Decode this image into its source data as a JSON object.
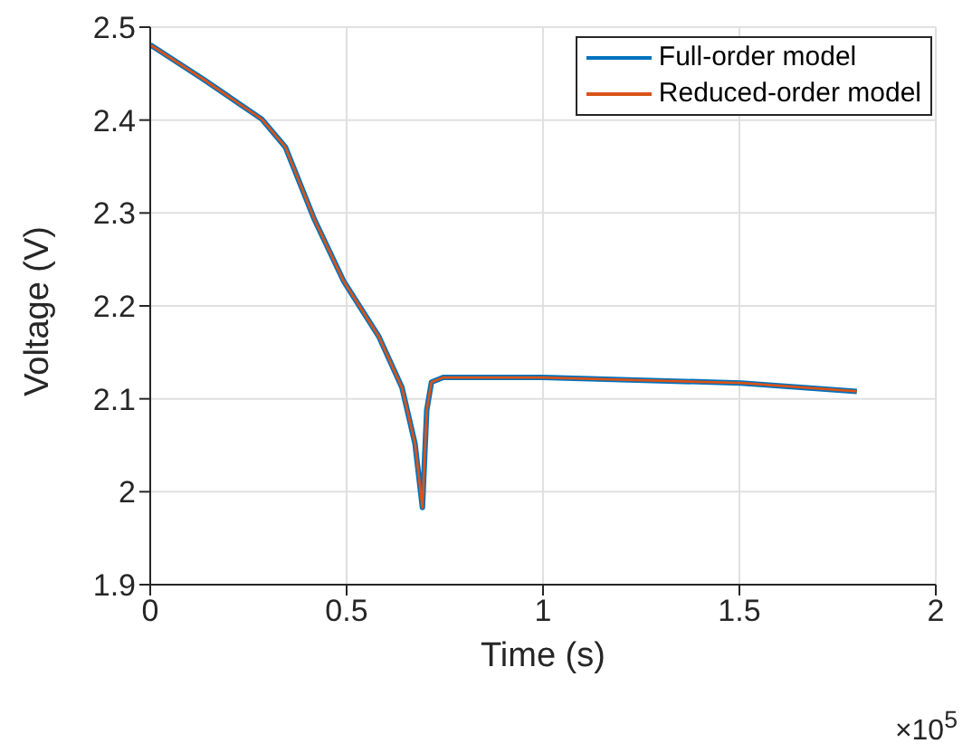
{
  "chart_data": {
    "type": "line",
    "xlabel": "Time (s)",
    "ylabel": "Voltage (V)",
    "x": [
      0,
      0.135,
      0.284,
      0.344,
      0.418,
      0.492,
      0.582,
      0.641,
      0.674,
      0.693,
      0.704,
      0.716,
      0.746,
      0.999,
      1.504,
      1.799
    ],
    "series": [
      {
        "name": "Full-order model",
        "color": "#0072bd",
        "values": [
          2.481,
          2.444,
          2.401,
          2.371,
          2.293,
          2.227,
          2.167,
          2.112,
          2.052,
          1.983,
          2.088,
          2.118,
          2.123,
          2.123,
          2.117,
          2.108
        ]
      },
      {
        "name": "Reduced-order model",
        "color": "#d95319",
        "values": [
          2.481,
          2.444,
          2.401,
          2.371,
          2.293,
          2.227,
          2.167,
          2.112,
          2.052,
          1.983,
          2.088,
          2.118,
          2.123,
          2.123,
          2.117,
          2.108
        ]
      }
    ],
    "xlim": [
      0,
      2
    ],
    "xticks": [
      0,
      0.5,
      1,
      1.5,
      2
    ],
    "ylim": [
      1.9,
      2.5
    ],
    "yticks": [
      1.9,
      2,
      2.1,
      2.2,
      2.3,
      2.4,
      2.5
    ],
    "grid": true,
    "legend": "top right",
    "annotations": [
      "×10$^{5}$"
    ]
  }
}
